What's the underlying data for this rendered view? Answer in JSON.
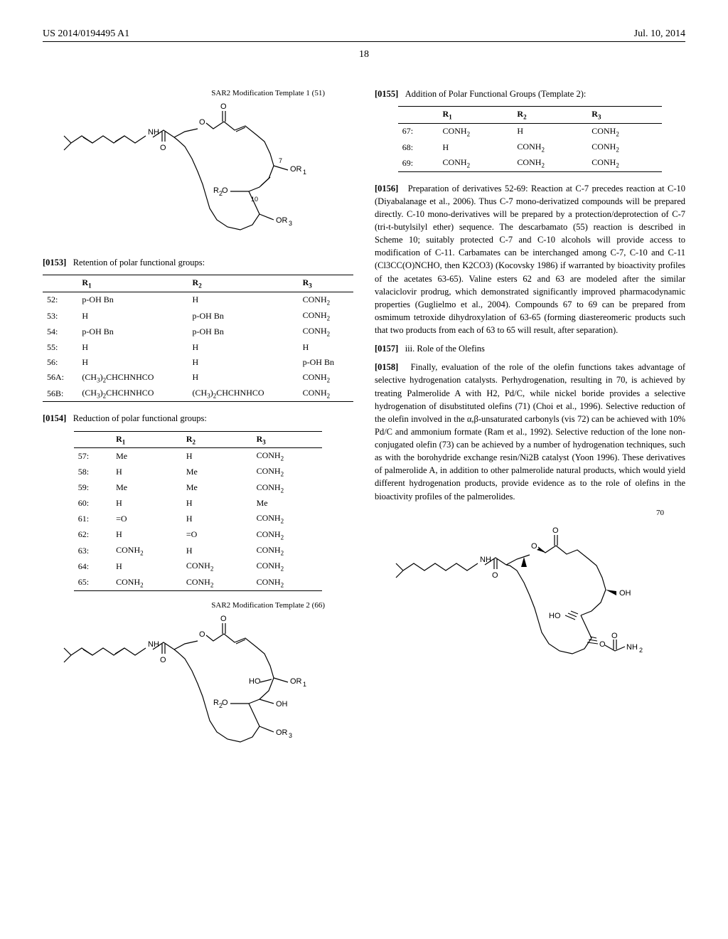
{
  "header": {
    "left": "US 2014/0194495 A1",
    "right": "Jul. 10, 2014"
  },
  "page_number": "18",
  "left_col": {
    "fig1_caption": "SAR2 Modification Template 1 (51)",
    "labels": {
      "OR1": "OR1",
      "R2O": "R2O",
      "OR3": "OR3",
      "NH": "NH",
      "O": "O",
      "p7": "7",
      "p10": "10"
    },
    "para153_num": "[0153]",
    "para153_text": "Retention of polar functional groups:",
    "table1": {
      "columns": [
        "",
        "R1",
        "R2",
        "R3"
      ],
      "rows": [
        [
          "52:",
          "p-OH Bn",
          "H",
          "CONH2"
        ],
        [
          "53:",
          "H",
          "p-OH Bn",
          "CONH2"
        ],
        [
          "54:",
          "p-OH Bn",
          "p-OH Bn",
          "CONH2"
        ],
        [
          "55:",
          "H",
          "H",
          "H"
        ],
        [
          "56:",
          "H",
          "H",
          "p-OH Bn"
        ],
        [
          "56A:",
          "(CH3)2CHCHNHCO",
          "H",
          "CONH2"
        ],
        [
          "56B:",
          "(CH3)2CHCHNHCO",
          "(CH3)2CHCHNHCO",
          "CONH2"
        ]
      ]
    },
    "para154_num": "[0154]",
    "para154_text": "Reduction of polar functional groups:",
    "table2": {
      "columns": [
        "",
        "R1",
        "R2",
        "R3"
      ],
      "rows": [
        [
          "57:",
          "Me",
          "H",
          "CONH2"
        ],
        [
          "58:",
          "H",
          "Me",
          "CONH2"
        ],
        [
          "59:",
          "Me",
          "Me",
          "CONH2"
        ],
        [
          "60:",
          "H",
          "H",
          "Me"
        ],
        [
          "61:",
          "=O",
          "H",
          "CONH2"
        ],
        [
          "62:",
          "H",
          "=O",
          "CONH2"
        ],
        [
          "63:",
          "CONH2",
          "H",
          "CONH2"
        ],
        [
          "64:",
          "H",
          "CONH2",
          "CONH2"
        ],
        [
          "65:",
          "CONH2",
          "CONH2",
          "CONH2"
        ]
      ]
    },
    "fig2_caption": "SAR2 Modification Template 2 (66)",
    "labels2": {
      "HO": "HO",
      "OH": "OH",
      "OR1": "OR1",
      "R2O": "R2O",
      "OR3": "OR3",
      "NH": "NH",
      "O": "O"
    }
  },
  "right_col": {
    "para155_num": "[0155]",
    "para155_text": "Addition of Polar Functional Groups (Template 2):",
    "table3": {
      "columns": [
        "",
        "R1",
        "R2",
        "R3"
      ],
      "rows": [
        [
          "67:",
          "CONH2",
          "H",
          "CONH2"
        ],
        [
          "68:",
          "H",
          "CONH2",
          "CONH2"
        ],
        [
          "69:",
          "CONH2",
          "CONH2",
          "CONH2"
        ]
      ]
    },
    "para156_num": "[0156]",
    "para156_text": "Preparation of derivatives 52-69: Reaction at C-7 precedes reaction at C-10 (Diyabalanage et al., 2006). Thus C-7 mono-derivatized compounds will be prepared directly. C-10 mono-derivatives will be prepared by a protection/deprotection of C-7 (tri-t-butylsilyl ether) sequence. The descarbamato (55) reaction is described in Scheme 10; suitably protected C-7 and C-10 alcohols will provide access to modification of C-11. Carbamates can be interchanged among C-7, C-10 and C-11 (Cl3CC(O)NCHO, then K2CO3) (Kocovsky 1986) if warranted by bioactivity profiles of the acetates 63-65). Valine esters 62 and 63 are modeled after the similar valaciclovir prodrug, which demonstrated significantly improved pharmacodynamic properties (Guglielmo et al., 2004). Compounds 67 to 69 can be prepared from osmimum tetroxide dihydroxylation of 63-65 (forming diastereomeric products such that two products from each of 63 to 65 will result, after separation).",
    "para157_num": "[0157]",
    "para157_text": "iii. Role of the Olefins",
    "para158_num": "[0158]",
    "para158_text": "Finally, evaluation of the role of the olefin functions takes advantage of selective hydrogenation catalysts. Perhydrogenation, resulting in 70, is achieved by treating Palmerolide A with H2, Pd/C, while nickel boride provides a selective hydrogenation of disubstituted olefins (71) (Choi et al., 1996). Selective reduction of the olefin involved in the α,β-unsaturated carbonyls (vis 72) can be achieved with 10% Pd/C and ammonium formate (Ram et al., 1992). Selective reduction of the lone non-conjugated olefin (73) can be achieved by a number of hydrogenation techniques, such as with the borohydride exchange resin/Ni2B catalyst (Yoon 1996). These derivatives of palmerolide A, in addition to other palmerolide natural products, which would yield different hydrogenation products, provide evidence as to the role of olefins in the bioactivity profiles of the palmerolides.",
    "compound70": "70",
    "labels3": {
      "OH": "OH",
      "HO": "HO",
      "NH": "NH",
      "O": "O",
      "NH2": "NH2"
    }
  }
}
